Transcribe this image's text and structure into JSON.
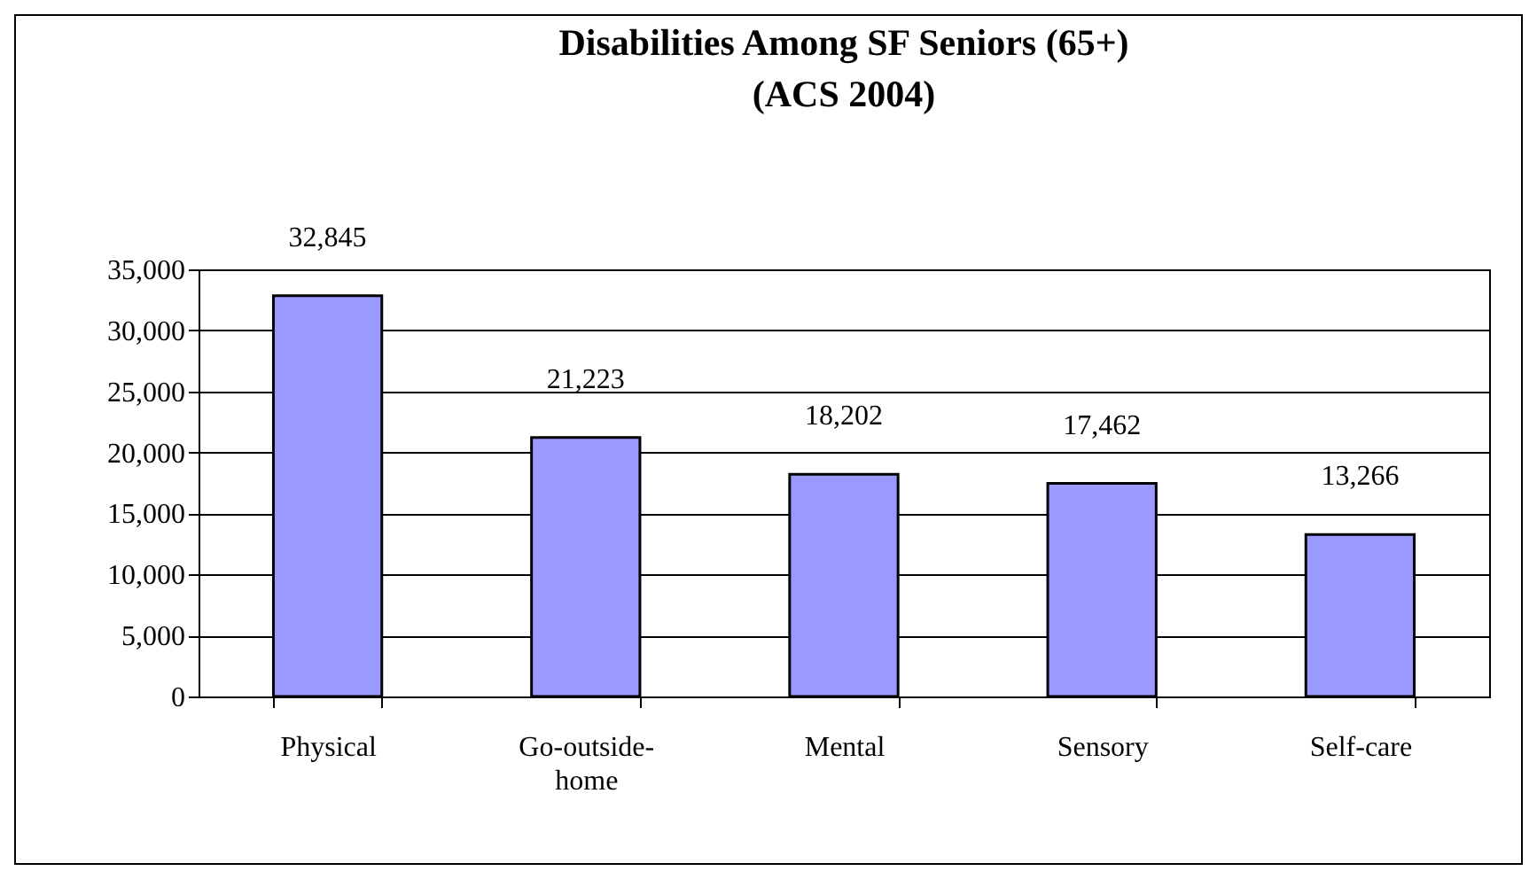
{
  "chart_data": {
    "type": "bar",
    "title": "Disabilities Among SF Seniors (65+)",
    "subtitle": "(ACS 2004)",
    "categories": [
      "Physical",
      "Go-outside-home",
      "Mental",
      "Sensory",
      "Self-care"
    ],
    "values": [
      32845,
      21223,
      18202,
      17462,
      13266
    ],
    "color": "#9999ff",
    "value_labels": [
      "32,845",
      "21,223",
      "18,202",
      "17,462",
      "13,266"
    ],
    "ylim": [
      0,
      35000
    ],
    "yticks": [
      0,
      {
        "value": 5000,
        "label": "5,000"
      },
      {
        "value": 10000,
        "label": "10,000"
      },
      {
        "value": 15000,
        "label": "15,000"
      },
      {
        "value": 20000,
        "label": "20,000"
      },
      {
        "value": 25000,
        "label": "25,000"
      },
      {
        "value": 30000,
        "label": "30,000"
      },
      {
        "value": 35000,
        "label": "35,000"
      }
    ],
    "grid": "y"
  }
}
